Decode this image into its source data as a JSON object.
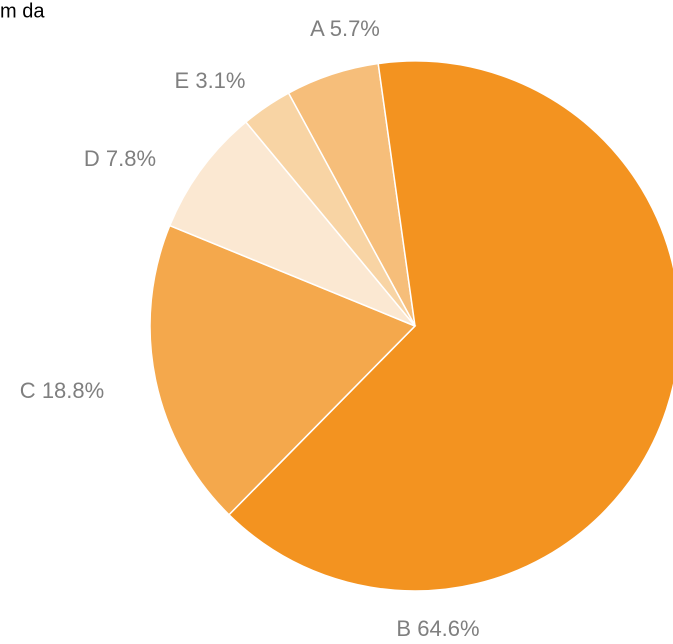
{
  "chart_data": {
    "type": "pie",
    "title": "m da",
    "categories": [
      "A",
      "B",
      "C",
      "D",
      "E"
    ],
    "values": [
      5.7,
      64.6,
      18.8,
      7.8,
      3.1
    ],
    "value_labels": [
      "5.7%",
      "64.6%",
      "18.8%",
      "7.8%",
      "3.1%"
    ],
    "colors": [
      "#f6be7a",
      "#f39320",
      "#f4a84c",
      "#fbe8d2",
      "#f8d4a4"
    ]
  }
}
